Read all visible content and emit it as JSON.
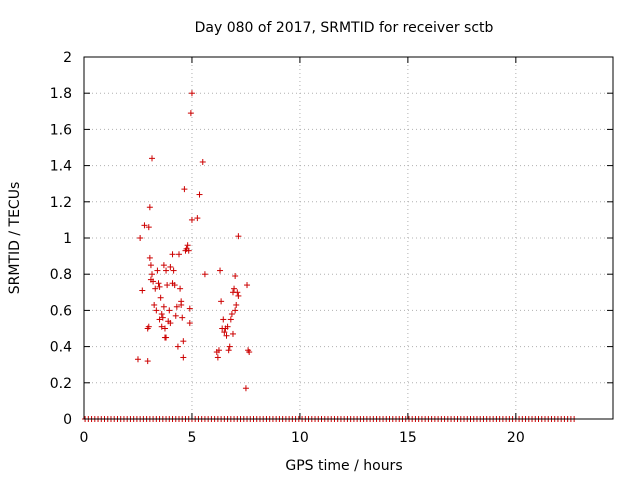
{
  "chart_data": {
    "type": "scatter",
    "title": "Day 080 of 2017, SRMTID for receiver sctb",
    "xlabel": "GPS time / hours",
    "ylabel": "SRMTID / TECUs",
    "xlim": [
      0,
      24.5
    ],
    "ylim": [
      0,
      2
    ],
    "xticks": [
      0,
      5,
      10,
      15,
      20
    ],
    "yticks": [
      0,
      0.2,
      0.4,
      0.6,
      0.8,
      1,
      1.2,
      1.4,
      1.6,
      1.8,
      2
    ],
    "grid": true,
    "marker": "+",
    "color": "#cc0000",
    "series": [
      {
        "name": "SRMTID",
        "points": [
          [
            2.5,
            0.33
          ],
          [
            2.6,
            1.0
          ],
          [
            2.7,
            0.71
          ],
          [
            2.8,
            1.07
          ],
          [
            2.95,
            0.5
          ],
          [
            2.95,
            0.32
          ],
          [
            3.0,
            1.06
          ],
          [
            3.0,
            0.51
          ],
          [
            3.05,
            1.17
          ],
          [
            3.05,
            0.89
          ],
          [
            3.1,
            0.85
          ],
          [
            3.1,
            0.77
          ],
          [
            3.15,
            0.8
          ],
          [
            3.15,
            1.44
          ],
          [
            3.2,
            0.76
          ],
          [
            3.25,
            0.63
          ],
          [
            3.3,
            0.72
          ],
          [
            3.35,
            0.6
          ],
          [
            3.4,
            0.82
          ],
          [
            3.45,
            0.75
          ],
          [
            3.5,
            0.73
          ],
          [
            3.5,
            0.55
          ],
          [
            3.55,
            0.67
          ],
          [
            3.6,
            0.58
          ],
          [
            3.6,
            0.51
          ],
          [
            3.65,
            0.56
          ],
          [
            3.7,
            0.85
          ],
          [
            3.7,
            0.62
          ],
          [
            3.75,
            0.5
          ],
          [
            3.75,
            0.45
          ],
          [
            3.8,
            0.45
          ],
          [
            3.8,
            0.82
          ],
          [
            3.85,
            0.74
          ],
          [
            3.9,
            0.54
          ],
          [
            3.95,
            0.6
          ],
          [
            4.0,
            0.84
          ],
          [
            4.0,
            0.53
          ],
          [
            4.1,
            0.91
          ],
          [
            4.1,
            0.75
          ],
          [
            4.15,
            0.82
          ],
          [
            4.2,
            0.74
          ],
          [
            4.25,
            0.57
          ],
          [
            4.3,
            0.62
          ],
          [
            4.35,
            0.4
          ],
          [
            4.4,
            0.91
          ],
          [
            4.45,
            0.72
          ],
          [
            4.5,
            0.63
          ],
          [
            4.5,
            0.65
          ],
          [
            4.55,
            0.56
          ],
          [
            4.6,
            0.34
          ],
          [
            4.6,
            0.43
          ],
          [
            4.65,
            1.27
          ],
          [
            4.7,
            0.93
          ],
          [
            4.75,
            0.94
          ],
          [
            4.8,
            0.96
          ],
          [
            4.85,
            0.93
          ],
          [
            4.9,
            0.61
          ],
          [
            4.9,
            0.53
          ],
          [
            4.95,
            1.69
          ],
          [
            5.0,
            1.8
          ],
          [
            5.0,
            1.1
          ],
          [
            5.25,
            1.11
          ],
          [
            5.35,
            1.24
          ],
          [
            5.5,
            1.42
          ],
          [
            5.6,
            0.8
          ],
          [
            6.15,
            0.37
          ],
          [
            6.2,
            0.34
          ],
          [
            6.25,
            0.38
          ],
          [
            6.3,
            0.82
          ],
          [
            6.35,
            0.65
          ],
          [
            6.4,
            0.5
          ],
          [
            6.45,
            0.55
          ],
          [
            6.5,
            0.48
          ],
          [
            6.55,
            0.5
          ],
          [
            6.6,
            0.46
          ],
          [
            6.65,
            0.51
          ],
          [
            6.7,
            0.38
          ],
          [
            6.75,
            0.4
          ],
          [
            6.8,
            0.55
          ],
          [
            6.85,
            0.58
          ],
          [
            6.9,
            0.47
          ],
          [
            6.9,
            0.7
          ],
          [
            6.95,
            0.72
          ],
          [
            7.0,
            0.79
          ],
          [
            7.0,
            0.6
          ],
          [
            7.05,
            0.63
          ],
          [
            7.1,
            0.7
          ],
          [
            7.15,
            0.68
          ],
          [
            7.15,
            1.01
          ],
          [
            7.5,
            0.17
          ],
          [
            7.55,
            0.74
          ],
          [
            7.6,
            0.38
          ],
          [
            7.65,
            0.37
          ]
        ]
      }
    ],
    "zero_band": {
      "value": 0,
      "x_range": [
        0.05,
        22.75
      ],
      "spacing_hours": 0.15
    }
  }
}
